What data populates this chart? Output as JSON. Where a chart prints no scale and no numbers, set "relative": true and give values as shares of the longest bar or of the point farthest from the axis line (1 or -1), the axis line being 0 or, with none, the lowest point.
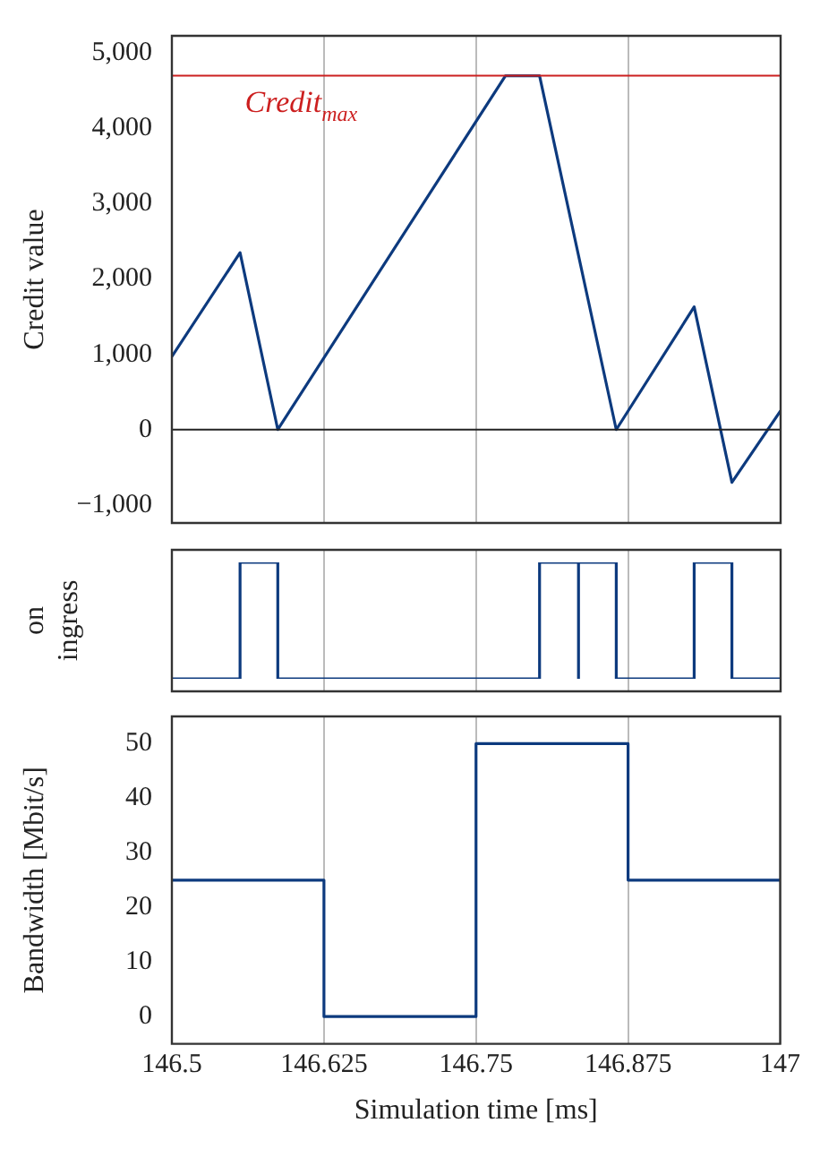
{
  "chart_data": [
    {
      "type": "line",
      "ylabel": "Credit value",
      "x": [
        146.5,
        146.556,
        146.587,
        146.774,
        146.802,
        146.865,
        146.929,
        146.96,
        147
      ],
      "series": [
        {
          "color": "#0d3a7e",
          "values": [
            970,
            2350,
            0,
            4700,
            4700,
            0,
            1630,
            -700,
            250
          ]
        }
      ],
      "xlim": [
        146.5,
        147
      ],
      "xticks": [
        146.5,
        146.625,
        146.75,
        146.875,
        147
      ],
      "ylim": [
        -1240,
        5230
      ],
      "yticks": [
        {
          "value": -1000,
          "label": "−1,000"
        },
        0,
        {
          "value": 1000,
          "label": "1,000"
        },
        {
          "value": 2000,
          "label": "2,000"
        },
        {
          "value": 3000,
          "label": "3,000"
        },
        {
          "value": 4000,
          "label": "4,000"
        },
        {
          "value": 5000,
          "label": "5,000"
        }
      ],
      "ref_lines": [
        {
          "axis": "y",
          "value": 4700,
          "label": "Credit$_{max}$",
          "color": "#cc1f1f"
        },
        {
          "axis": "y",
          "value": 0,
          "color": "#222222"
        }
      ],
      "grid": "x",
      "tick_labels": "y"
    },
    {
      "type": "step",
      "ylabel": "on ingress",
      "relative": true,
      "x": [
        146.5,
        146.556,
        146.587,
        146.802,
        146.834,
        146.834,
        146.865,
        146.929,
        146.96,
        147
      ],
      "series": [
        {
          "color": "#0d3a7e",
          "values": [
            0,
            1,
            0,
            1,
            0,
            1,
            0,
            1,
            0,
            0
          ]
        }
      ],
      "xlim": [
        146.5,
        147
      ],
      "xticks": [
        146.5,
        146.625,
        146.75,
        146.875,
        147
      ],
      "grid": "x",
      "tick_labels": false
    },
    {
      "type": "step",
      "xlabel": "Simulation time [ms]",
      "ylabel": "Bandwidth [Mbit/s]",
      "x": [
        146.5,
        146.625,
        146.75,
        146.875,
        147
      ],
      "series": [
        {
          "color": "#0d3a7e",
          "values": [
            25,
            0,
            50,
            25,
            25
          ]
        }
      ],
      "xlim": [
        146.5,
        147
      ],
      "xticks": [
        146.5,
        146.625,
        146.75,
        146.875,
        147
      ],
      "ylim": [
        -5,
        55
      ],
      "yticks": [
        0,
        10,
        20,
        30,
        40,
        50
      ],
      "grid": "x"
    }
  ]
}
